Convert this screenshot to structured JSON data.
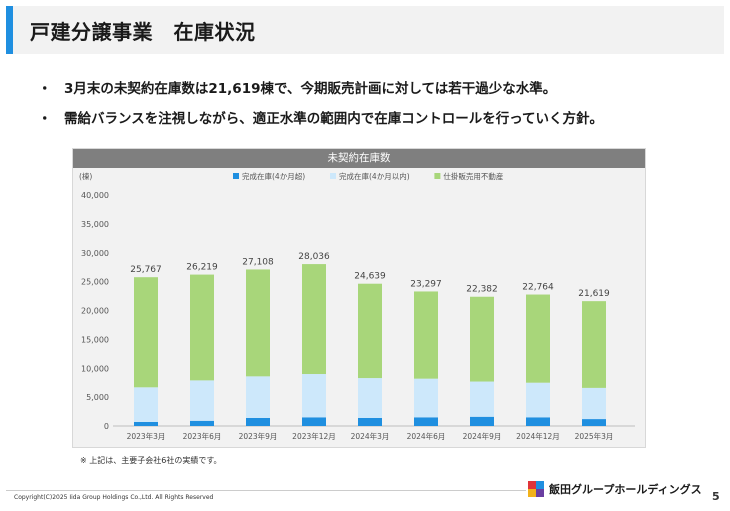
{
  "title": "戸建分譲事業　在庫状況",
  "bullets": [
    "3月末の未契約在庫数は21,619棟で、今期販売計画に対しては若干過少な水準。",
    "需給バランスを注視しながら、適正水準の範囲内で在庫コントロールを行っていく方針。"
  ],
  "bullet_marker": "・",
  "colors": {
    "accent": "#1f8fe0",
    "completed_over4": "#1f8fe0",
    "completed_within4": "#cde8fb",
    "in_progress": "#a8d67a",
    "header_bg": "#7f7f7f",
    "chart_bg": "#f2f2f2"
  },
  "chart_data": {
    "type": "bar",
    "stacked": true,
    "title": "未契約在庫数",
    "ylabel": "(棟)",
    "ylim": [
      0,
      40000
    ],
    "yticks": [
      0,
      5000,
      10000,
      15000,
      20000,
      25000,
      30000,
      35000,
      40000
    ],
    "ytick_labels": [
      "0",
      "5,000",
      "10,000",
      "15,000",
      "20,000",
      "25,000",
      "30,000",
      "35,000",
      "40,000"
    ],
    "categories": [
      "2023年3月",
      "2023年6月",
      "2023年9月",
      "2023年12月",
      "2024年3月",
      "2024年6月",
      "2024年9月",
      "2024年12月",
      "2025年3月"
    ],
    "series": [
      {
        "name": "完成在庫(4か月超)",
        "color_key": "completed_over4",
        "values": [
          700,
          900,
          1400,
          1500,
          1400,
          1500,
          1600,
          1500,
          1200
        ]
      },
      {
        "name": "完成在庫(4か月以内)",
        "color_key": "completed_within4",
        "values": [
          6000,
          7000,
          7200,
          7500,
          6900,
          6700,
          6100,
          6000,
          5400
        ]
      },
      {
        "name": "仕掛販売用不動産",
        "color_key": "in_progress",
        "values": [
          19067,
          18319,
          18508,
          19036,
          16339,
          15097,
          14682,
          15264,
          15019
        ]
      }
    ],
    "totals": [
      25767,
      26219,
      27108,
      28036,
      24639,
      23297,
      22382,
      22764,
      21619
    ],
    "total_labels": [
      "25,767",
      "26,219",
      "27,108",
      "28,036",
      "24,639",
      "23,297",
      "22,382",
      "22,764",
      "21,619"
    ],
    "legend_position": "top"
  },
  "footnote": "※ 上記は、主要子会社6社の実績です。",
  "copyright": "Copyright(C)2025 Iida Group Holdings Co.,Ltd. All Rights Reserved",
  "company": "飯田グループホールディングス",
  "logo_icon": "iida-group-logo-icon",
  "page_number": "5"
}
